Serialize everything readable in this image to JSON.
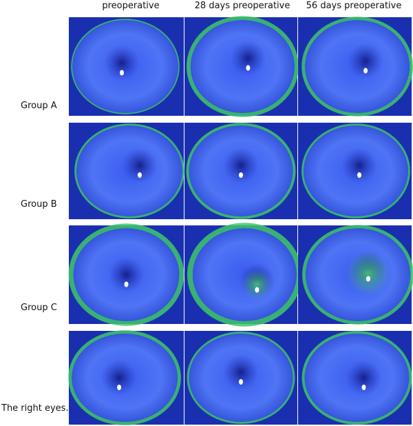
{
  "column_headers": [
    "preoperative",
    "28 days preoperative",
    "56 days preoperative"
  ],
  "row_labels": [
    "Group A",
    "Group B",
    "Group C",
    "The right eyes."
  ]
}
